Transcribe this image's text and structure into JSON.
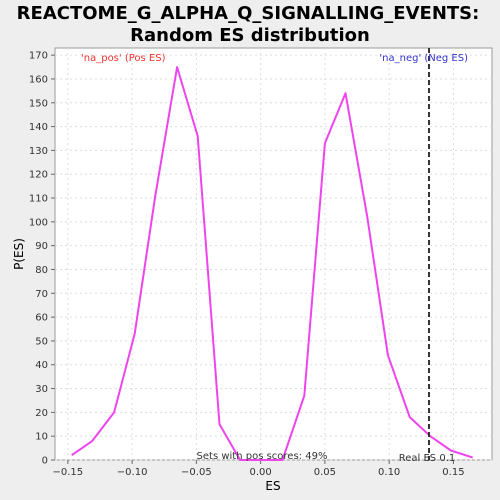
{
  "chart_data": {
    "type": "line",
    "title": "REACTOME_G_ALPHA_Q_SIGNALLING_EVENTS:",
    "subtitle": "Random ES distribution",
    "xlabel": "ES",
    "ylabel": "P(ES)",
    "xlim": [
      -0.16,
      0.18
    ],
    "ylim": [
      0,
      173
    ],
    "xticks": [
      -0.15,
      -0.1,
      -0.05,
      0.0,
      0.05,
      0.1,
      0.15
    ],
    "xtick_labels": [
      "−0.15",
      "−0.10",
      "−0.05",
      "0.00",
      "0.05",
      "0.10",
      "0.15"
    ],
    "yticks": [
      0,
      10,
      20,
      30,
      40,
      50,
      60,
      70,
      80,
      90,
      100,
      110,
      120,
      130,
      140,
      150,
      160,
      170
    ],
    "grid": true,
    "series": [
      {
        "color": "#ee44ee",
        "x": [
          -0.147,
          -0.131,
          -0.114,
          -0.098,
          -0.082,
          -0.065,
          -0.049,
          -0.032,
          -0.016,
          0.001,
          0.017,
          0.034,
          0.05,
          0.066,
          0.083,
          0.099,
          0.116,
          0.132,
          0.148,
          0.165
        ],
        "y": [
          2,
          8,
          20,
          53,
          111,
          165,
          136,
          15,
          0,
          0,
          0,
          27,
          133,
          154,
          102,
          44,
          18,
          10,
          4,
          1
        ]
      }
    ],
    "real_es": {
      "x": 0.131,
      "label": "Real ES 0.1",
      "color": "#333333"
    },
    "annotations": {
      "pos_label": "'na_pos' (Pos ES)",
      "pos_color": "#ee3333",
      "neg_label": "'na_neg' (Neg ES)",
      "neg_color": "#3333cc",
      "scores_label": "Sets with pos scores: 49%"
    }
  }
}
